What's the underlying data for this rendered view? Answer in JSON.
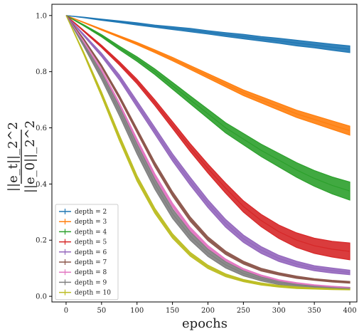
{
  "chart_data": {
    "type": "line",
    "title": "",
    "xlabel": "epochs",
    "ylabel_num": "||e_t||_2^2",
    "ylabel_den": "||e_0||_2^2",
    "xlim": [
      -20,
      410
    ],
    "ylim": [
      -0.02,
      1.04
    ],
    "x_ticks": [
      0,
      50,
      100,
      150,
      200,
      250,
      300,
      350,
      400
    ],
    "y_ticks": [
      0.0,
      0.2,
      0.4,
      0.6,
      0.8,
      1.0
    ],
    "x_tick_labels": [
      "0",
      "50",
      "100",
      "150",
      "200",
      "250",
      "300",
      "350",
      "400"
    ],
    "y_tick_labels": [
      "0.0",
      "0.2",
      "0.4",
      "0.6",
      "0.8",
      "1.0"
    ],
    "grid": false,
    "legend_position": "lower-left",
    "x": [
      0,
      25,
      50,
      75,
      100,
      125,
      150,
      175,
      200,
      225,
      250,
      275,
      300,
      325,
      350,
      375,
      400
    ],
    "series": [
      {
        "name": "depth = 2",
        "color": "#1f77b4",
        "values": [
          1.0,
          0.993,
          0.985,
          0.978,
          0.97,
          0.962,
          0.955,
          0.948,
          0.94,
          0.932,
          0.925,
          0.917,
          0.91,
          0.902,
          0.895,
          0.887,
          0.88
        ],
        "spread": [
          0.0,
          0.001,
          0.002,
          0.003,
          0.004,
          0.004,
          0.005,
          0.006,
          0.006,
          0.007,
          0.008,
          0.008,
          0.009,
          0.01,
          0.01,
          0.011,
          0.012
        ]
      },
      {
        "name": "depth = 3",
        "color": "#ff7f0e",
        "values": [
          1.0,
          0.975,
          0.95,
          0.925,
          0.9,
          0.873,
          0.845,
          0.815,
          0.785,
          0.755,
          0.725,
          0.7,
          0.675,
          0.65,
          0.63,
          0.61,
          0.59
        ],
        "spread": [
          0.0,
          0.001,
          0.002,
          0.003,
          0.004,
          0.005,
          0.006,
          0.007,
          0.008,
          0.009,
          0.01,
          0.011,
          0.012,
          0.013,
          0.014,
          0.015,
          0.016
        ]
      },
      {
        "name": "depth = 4",
        "color": "#2ca02c",
        "values": [
          1.0,
          0.965,
          0.928,
          0.885,
          0.845,
          0.8,
          0.75,
          0.7,
          0.65,
          0.6,
          0.56,
          0.52,
          0.485,
          0.45,
          0.42,
          0.395,
          0.375
        ],
        "spread": [
          0.0,
          0.002,
          0.004,
          0.006,
          0.008,
          0.01,
          0.012,
          0.014,
          0.016,
          0.018,
          0.02,
          0.022,
          0.024,
          0.026,
          0.028,
          0.03,
          0.032
        ]
      },
      {
        "name": "depth = 5",
        "color": "#d62728",
        "values": [
          1.0,
          0.945,
          0.89,
          0.83,
          0.765,
          0.69,
          0.61,
          0.53,
          0.455,
          0.385,
          0.32,
          0.27,
          0.23,
          0.2,
          0.18,
          0.168,
          0.16
        ],
        "spread": [
          0.0,
          0.002,
          0.004,
          0.006,
          0.008,
          0.01,
          0.012,
          0.014,
          0.016,
          0.018,
          0.02,
          0.022,
          0.024,
          0.026,
          0.027,
          0.028,
          0.03
        ]
      },
      {
        "name": "depth = 6",
        "color": "#9467bd",
        "values": [
          1.0,
          0.93,
          0.86,
          0.78,
          0.685,
          0.59,
          0.495,
          0.41,
          0.33,
          0.26,
          0.205,
          0.165,
          0.135,
          0.115,
          0.1,
          0.092,
          0.085
        ],
        "spread": [
          0.0,
          0.003,
          0.006,
          0.009,
          0.011,
          0.012,
          0.013,
          0.014,
          0.014,
          0.014,
          0.013,
          0.012,
          0.011,
          0.01,
          0.009,
          0.009,
          0.008
        ]
      },
      {
        "name": "depth = 7",
        "color": "#8c564b",
        "values": [
          1.0,
          0.915,
          0.82,
          0.71,
          0.59,
          0.47,
          0.365,
          0.275,
          0.205,
          0.155,
          0.12,
          0.095,
          0.08,
          0.068,
          0.06,
          0.054,
          0.05
        ],
        "spread": [
          0.0,
          0.002,
          0.004,
          0.006,
          0.007,
          0.008,
          0.008,
          0.008,
          0.007,
          0.006,
          0.005,
          0.005,
          0.004,
          0.004,
          0.003,
          0.003,
          0.003
        ]
      },
      {
        "name": "depth = 8",
        "color": "#e377c2",
        "values": [
          1.0,
          0.905,
          0.805,
          0.685,
          0.555,
          0.43,
          0.325,
          0.24,
          0.175,
          0.128,
          0.095,
          0.072,
          0.056,
          0.046,
          0.039,
          0.034,
          0.03
        ],
        "spread": [
          0.0,
          0.002,
          0.004,
          0.005,
          0.006,
          0.007,
          0.007,
          0.006,
          0.006,
          0.005,
          0.004,
          0.004,
          0.003,
          0.003,
          0.002,
          0.002,
          0.002
        ]
      },
      {
        "name": "depth = 9",
        "color": "#7f7f7f",
        "values": [
          1.0,
          0.895,
          0.785,
          0.66,
          0.525,
          0.4,
          0.295,
          0.215,
          0.155,
          0.112,
          0.082,
          0.062,
          0.048,
          0.04,
          0.034,
          0.03,
          0.028
        ],
        "spread": [
          0.0,
          0.006,
          0.012,
          0.016,
          0.018,
          0.018,
          0.017,
          0.015,
          0.013,
          0.011,
          0.009,
          0.007,
          0.006,
          0.005,
          0.004,
          0.004,
          0.003
        ]
      },
      {
        "name": "depth = 10",
        "color": "#bcbd22",
        "values": [
          1.0,
          0.865,
          0.72,
          0.565,
          0.42,
          0.305,
          0.215,
          0.15,
          0.105,
          0.075,
          0.056,
          0.044,
          0.036,
          0.031,
          0.028,
          0.026,
          0.025
        ],
        "spread": [
          0.0,
          0.004,
          0.008,
          0.01,
          0.01,
          0.009,
          0.008,
          0.007,
          0.006,
          0.005,
          0.004,
          0.004,
          0.003,
          0.003,
          0.002,
          0.002,
          0.002
        ]
      }
    ]
  }
}
